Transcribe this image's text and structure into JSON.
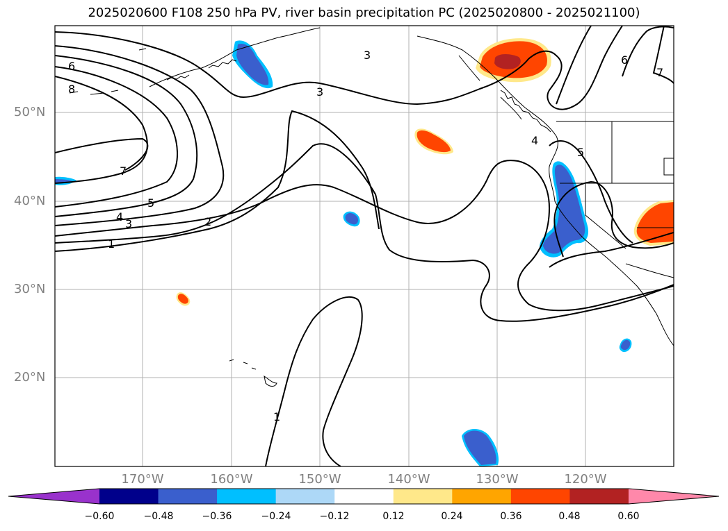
{
  "title": "2025020600 F108 250 hPa PV, river basin precipitation PC (2025020800 - 2025021100)",
  "lat_labels": [
    "50°N",
    "40°N",
    "30°N",
    "20°N"
  ],
  "lon_labels": [
    "170°W",
    "160°W",
    "150°W",
    "140°W",
    "130°W",
    "120°W"
  ],
  "contour_labels": [
    "6",
    "8",
    "7",
    "5",
    "4",
    "3",
    "2",
    "1",
    "3",
    "3",
    "1",
    "4",
    "5",
    "6",
    "7"
  ],
  "colorbar": {
    "ticks": [
      "−0.60",
      "−0.48",
      "−0.36",
      "−0.24",
      "−0.12",
      "0.12",
      "0.24",
      "0.36",
      "0.48",
      "0.60"
    ],
    "colors": [
      "#9932cc",
      "#00008b",
      "#3a5fcd",
      "#00bfff",
      "#add8f7",
      "#ffffff",
      "#ffe88a",
      "#ffa500",
      "#ff4500",
      "#b22222",
      "#ff88aa"
    ]
  }
}
